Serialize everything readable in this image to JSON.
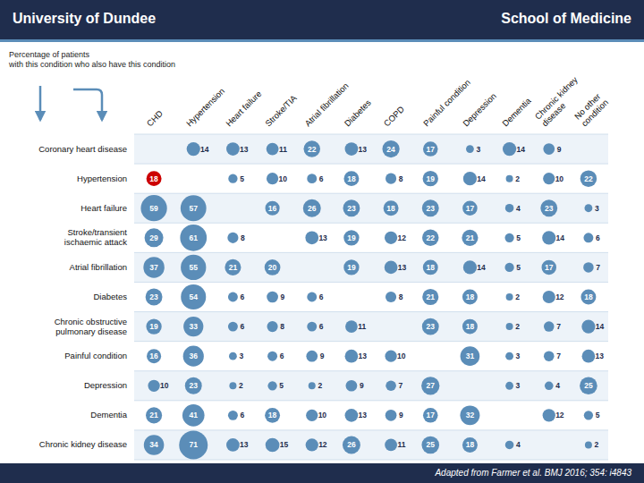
{
  "chart_data": {
    "type": "bubble_matrix",
    "title": "University of Dundee",
    "subtitle": "School of Medicine",
    "annotations": [
      "Percentage of patients\nwith this condition who also have this condition",
      "Adapted from Farmer et al. BMJ 2016; 354: i4843"
    ],
    "categories": [
      "CHD",
      "Hypertension",
      "Heart failure",
      "Stroke/TIA",
      "Atrial fibrillation",
      "Diabetes",
      "COPD",
      "Painful condition",
      "Depression",
      "Dementia",
      "Chronic kidney\ndisease",
      "No other\ncondition"
    ],
    "color": "#5B8DB8",
    "grid": true,
    "data_labels": true,
    "series": [
      {
        "name": "Coronary heart disease",
        "values": [
          null,
          14,
          13,
          11,
          22,
          13,
          24,
          17,
          3,
          14,
          9,
          null
        ]
      },
      {
        "name": "Hypertension",
        "values": [
          18,
          null,
          5,
          10,
          6,
          18,
          8,
          19,
          14,
          2,
          10,
          22
        ],
        "colors": [
          "#CC0000",
          null,
          "#5B8DB8",
          "#5B8DB8",
          "#5B8DB8",
          "#5B8DB8",
          "#5B8DB8",
          "#5B8DB8",
          "#5B8DB8",
          "#5B8DB8",
          "#5B8DB8",
          "#5B8DB8"
        ]
      },
      {
        "name": "Heart failure",
        "values": [
          59,
          57,
          null,
          16,
          26,
          23,
          18,
          23,
          17,
          4,
          23,
          3
        ]
      },
      {
        "name": "Stroke/transient\nischaemic attack",
        "values": [
          29,
          61,
          8,
          null,
          13,
          19,
          12,
          22,
          21,
          5,
          14,
          6
        ]
      },
      {
        "name": "Atrial fibrillation",
        "values": [
          37,
          55,
          21,
          20,
          null,
          19,
          13,
          18,
          14,
          5,
          17,
          7
        ]
      },
      {
        "name": "Diabetes",
        "values": [
          23,
          54,
          6,
          9,
          6,
          null,
          8,
          21,
          18,
          2,
          12,
          18
        ]
      },
      {
        "name": "Chronic obstructive\npulmonary disease",
        "values": [
          19,
          33,
          6,
          8,
          6,
          11,
          null,
          23,
          18,
          2,
          7,
          14
        ]
      },
      {
        "name": "Painful condition",
        "values": [
          16,
          36,
          3,
          6,
          9,
          13,
          10,
          null,
          31,
          3,
          7,
          13
        ]
      },
      {
        "name": "Depression",
        "values": [
          10,
          23,
          2,
          5,
          2,
          9,
          7,
          27,
          null,
          3,
          4,
          25
        ]
      },
      {
        "name": "Dementia",
        "values": [
          21,
          41,
          6,
          18,
          10,
          13,
          9,
          17,
          32,
          null,
          12,
          5
        ]
      },
      {
        "name": "Chronic kidney disease",
        "values": [
          34,
          71,
          13,
          15,
          12,
          26,
          11,
          25,
          18,
          4,
          null,
          2
        ]
      }
    ]
  }
}
